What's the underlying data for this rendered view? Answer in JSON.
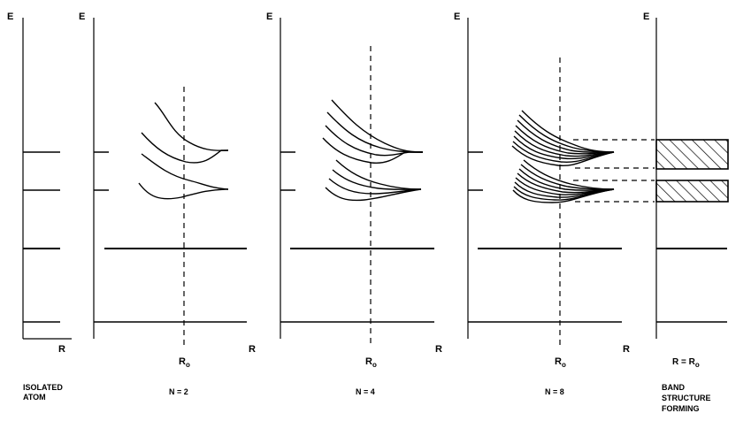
{
  "axis_labels": {
    "energy": "E",
    "distance": "R",
    "equilibrium": "R",
    "equilibrium_sub": "o",
    "band_condition_prefix": "R = R",
    "band_condition_sub": "o"
  },
  "panels": [
    {
      "id": "isolated",
      "caption_lines": [
        "ISOLATED",
        "ATOM"
      ]
    },
    {
      "id": "n2",
      "caption_lines": [
        "N = 2"
      ],
      "n": 2
    },
    {
      "id": "n4",
      "caption_lines": [
        "N = 4"
      ],
      "n": 4
    },
    {
      "id": "n8",
      "caption_lines": [
        "N = 8"
      ],
      "n": 8
    },
    {
      "id": "band",
      "caption_lines": [
        "BAND",
        "STRUCTURE",
        "FORMING"
      ]
    }
  ]
}
